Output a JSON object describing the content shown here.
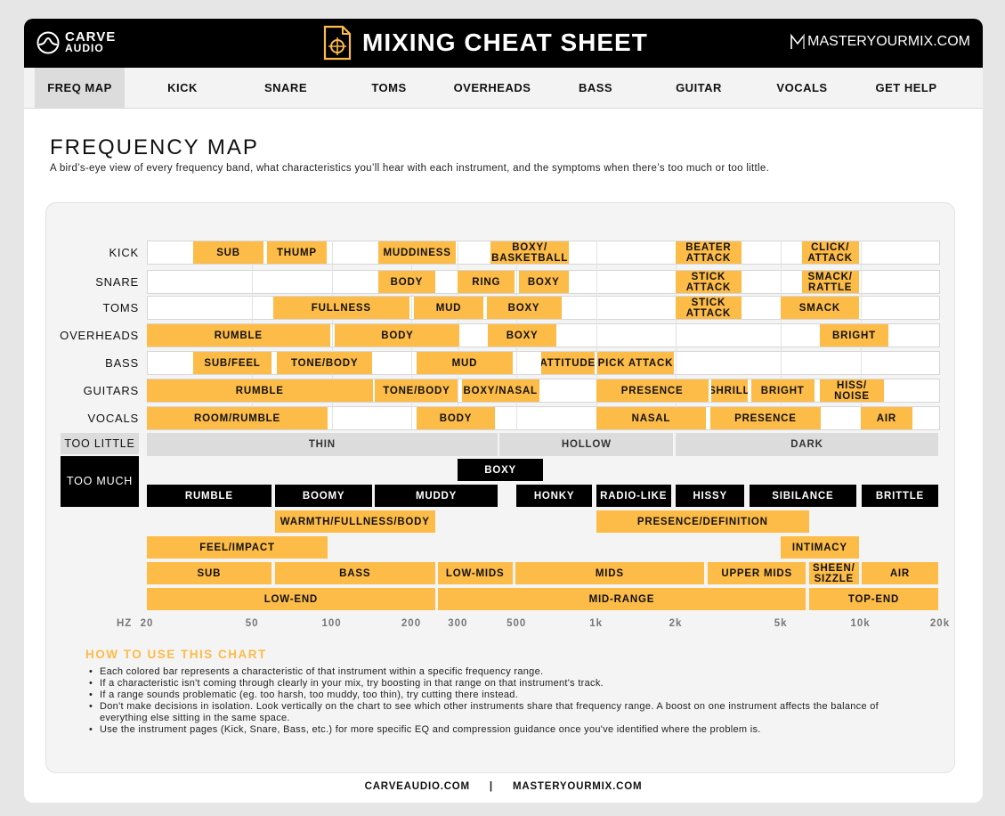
{
  "header": {
    "brand_left_line1": "CARVE",
    "brand_left_line2": "AUDIO",
    "title": "MIXING CHEAT SHEET",
    "brand_right_mark": "M",
    "brand_right": "MASTERYOURMIX.COM",
    "bg_color": "#000000"
  },
  "nav": {
    "items": [
      {
        "label": "FREQ MAP",
        "active": true
      },
      {
        "label": "KICK"
      },
      {
        "label": "SNARE"
      },
      {
        "label": "TOMS"
      },
      {
        "label": "OVERHEADS"
      },
      {
        "label": "BASS"
      },
      {
        "label": "GUITAR"
      },
      {
        "label": "VOCALS"
      },
      {
        "label": "GET HELP"
      }
    ]
  },
  "page": {
    "title": "FREQUENCY MAP",
    "subtitle": "A bird’s-eye view of every frequency band, what characteristics you’ll hear with each instrument, and the symptoms when there’s too much or too little."
  },
  "colors": {
    "accent": "#fdbb47",
    "black_band": "#000000",
    "gray_band": "#dcdcdc"
  },
  "chart_data": {
    "type": "table",
    "x_unit": "HZ",
    "x_scale": "log",
    "xlim": [
      20,
      20000
    ],
    "x_ticks": [
      {
        "value": 20,
        "label": "20"
      },
      {
        "value": 50,
        "label": "50"
      },
      {
        "value": 100,
        "label": "100"
      },
      {
        "value": 200,
        "label": "200"
      },
      {
        "value": 300,
        "label": "300"
      },
      {
        "value": 500,
        "label": "500"
      },
      {
        "value": 1000,
        "label": "1k"
      },
      {
        "value": 2000,
        "label": "2k"
      },
      {
        "value": 5000,
        "label": "5k"
      },
      {
        "value": 10000,
        "label": "10k"
      },
      {
        "value": 20000,
        "label": "20k"
      }
    ],
    "instruments": [
      {
        "name": "KICK",
        "bands": [
          {
            "label": "SUB",
            "from": 30,
            "to": 56
          },
          {
            "label": "THUMP",
            "from": 57,
            "to": 97
          },
          {
            "label": "MUDDINESS",
            "from": 150,
            "to": 300
          },
          {
            "label": "BOXY/ BASKETBALL",
            "from": 400,
            "to": 800
          },
          {
            "label": "BEATER ATTACK",
            "from": 2000,
            "to": 3600
          },
          {
            "label": "CLICK/ ATTACK",
            "from": 6000,
            "to": 10000
          }
        ]
      },
      {
        "name": "SNARE",
        "bands": [
          {
            "label": "BODY",
            "from": 150,
            "to": 250
          },
          {
            "label": "RING",
            "from": 300,
            "to": 500
          },
          {
            "label": "BOXY",
            "from": 510,
            "to": 800
          },
          {
            "label": "STICK ATTACK",
            "from": 2000,
            "to": 3600
          },
          {
            "label": "SMACK/ RATTLE",
            "from": 6000,
            "to": 10000
          }
        ]
      },
      {
        "name": "TOMS",
        "bands": [
          {
            "label": "FULLNESS",
            "from": 60,
            "to": 200
          },
          {
            "label": "MUD",
            "from": 205,
            "to": 380
          },
          {
            "label": "BOXY",
            "from": 385,
            "to": 750
          },
          {
            "label": "STICK ATTACK",
            "from": 2000,
            "to": 3600
          },
          {
            "label": "SMACK",
            "from": 5000,
            "to": 10000
          }
        ]
      },
      {
        "name": "OVERHEADS",
        "bands": [
          {
            "label": "RUMBLE",
            "from": 20,
            "to": 100
          },
          {
            "label": "BODY",
            "from": 103,
            "to": 310
          },
          {
            "label": "BOXY",
            "from": 390,
            "to": 720
          },
          {
            "label": "BRIGHT",
            "from": 7000,
            "to": 13000
          }
        ]
      },
      {
        "name": "BASS",
        "bands": [
          {
            "label": "SUB/FEEL",
            "from": 30,
            "to": 60
          },
          {
            "label": "TONE/BODY",
            "from": 62,
            "to": 145
          },
          {
            "label": "MUD",
            "from": 210,
            "to": 490
          },
          {
            "label": "ATTITUDE",
            "from": 620,
            "to": 1000
          },
          {
            "label": "PICK ATTACK",
            "from": 1010,
            "to": 2000
          }
        ]
      },
      {
        "name": "GUITARS",
        "bands": [
          {
            "label": "RUMBLE",
            "from": 20,
            "to": 145
          },
          {
            "label": "TONE/BODY",
            "from": 146,
            "to": 305
          },
          {
            "label": "BOXY/NASAL",
            "from": 310,
            "to": 620
          },
          {
            "label": "PRESENCE",
            "from": 1000,
            "to": 2700
          },
          {
            "label": "SHRILL",
            "from": 2720,
            "to": 3800
          },
          {
            "label": "BRIGHT",
            "from": 3850,
            "to": 6800
          },
          {
            "label": "HISS/ NOISE",
            "from": 7000,
            "to": 12500
          }
        ]
      },
      {
        "name": "VOCALS",
        "bands": [
          {
            "label": "ROOM/RUMBLE",
            "from": 20,
            "to": 98
          },
          {
            "label": "BODY",
            "from": 210,
            "to": 420
          },
          {
            "label": "NASAL",
            "from": 1000,
            "to": 2650
          },
          {
            "label": "PRESENCE",
            "from": 2700,
            "to": 7200
          },
          {
            "label": "AIR",
            "from": 10000,
            "to": 16000
          }
        ]
      }
    ],
    "too_little": {
      "label": "TOO LITTLE",
      "bands": [
        {
          "label": "THIN",
          "from": 20,
          "to": 430
        },
        {
          "label": "HOLLOW",
          "from": 432,
          "to": 1990
        },
        {
          "label": "DARK",
          "from": 2000,
          "to": 20000
        }
      ]
    },
    "too_much": {
      "label": "TOO MUCH",
      "bands": [
        {
          "label": "BOXY",
          "from": 300,
          "to": 640,
          "row": 0
        },
        {
          "label": "RUMBLE",
          "from": 20,
          "to": 60,
          "row": 1
        },
        {
          "label": "BOOMY",
          "from": 61,
          "to": 145,
          "row": 1
        },
        {
          "label": "MUDDY",
          "from": 146,
          "to": 430,
          "row": 1
        },
        {
          "label": "HONKY",
          "from": 500,
          "to": 980,
          "row": 1
        },
        {
          "label": "RADIO-LIKE",
          "from": 1000,
          "to": 1950,
          "row": 1
        },
        {
          "label": "HISSY",
          "from": 2000,
          "to": 3700,
          "row": 1
        },
        {
          "label": "SIBILANCE",
          "from": 3800,
          "to": 9800,
          "row": 1
        },
        {
          "label": "BRITTLE",
          "from": 10100,
          "to": 20000,
          "row": 1
        }
      ]
    },
    "characteristics": [
      {
        "label": "WARMTH/FULLNESS/BODY",
        "from": 61,
        "to": 250,
        "row": 0
      },
      {
        "label": "PRESENCE/DEFINITION",
        "from": 1000,
        "to": 6500,
        "row": 0
      },
      {
        "label": "FEEL/IMPACT",
        "from": 20,
        "to": 98,
        "row": 1
      },
      {
        "label": "INTIMACY",
        "from": 5000,
        "to": 10000,
        "row": 1
      }
    ],
    "ranges": [
      {
        "label": "SUB",
        "from": 20,
        "to": 60,
        "row": 0
      },
      {
        "label": "BASS",
        "from": 61,
        "to": 250,
        "row": 0
      },
      {
        "label": "LOW-MIDS",
        "from": 252,
        "to": 490,
        "row": 0
      },
      {
        "label": "MIDS",
        "from": 495,
        "to": 2600,
        "row": 0
      },
      {
        "label": "UPPER MIDS",
        "from": 2650,
        "to": 6300,
        "row": 0
      },
      {
        "label": "SHEEN/ SIZZLE",
        "from": 6400,
        "to": 10000,
        "row": 0
      },
      {
        "label": "AIR",
        "from": 10100,
        "to": 20000,
        "row": 0
      },
      {
        "label": "LOW-END",
        "from": 20,
        "to": 250,
        "row": 1
      },
      {
        "label": "MID-RANGE",
        "from": 252,
        "to": 6300,
        "row": 1
      },
      {
        "label": "TOP-END",
        "from": 6400,
        "to": 20000,
        "row": 1
      }
    ]
  },
  "how_to": {
    "title": "HOW TO USE THIS CHART",
    "items": [
      "Each colored bar represents a characteristic of that instrument within a specific frequency range.",
      "If a characteristic isn't coming through clearly in your mix, try boosting in that range on that instrument's track.",
      "If a range sounds problematic (eg. too harsh, too muddy, too thin), try cutting there instead.",
      "Don't make decisions in isolation. Look vertically on the chart to see which other instruments share that frequency range. A boost on one instrument affects the balance of everything else sitting in the same space.",
      "Use the instrument pages (Kick, Snare, Bass, etc.) for more specific EQ and compression guidance once you've identified where the problem is."
    ]
  },
  "footer": {
    "left": "CARVEAUDIO.COM",
    "separator": "|",
    "right": "MASTERYOURMIX.COM"
  }
}
